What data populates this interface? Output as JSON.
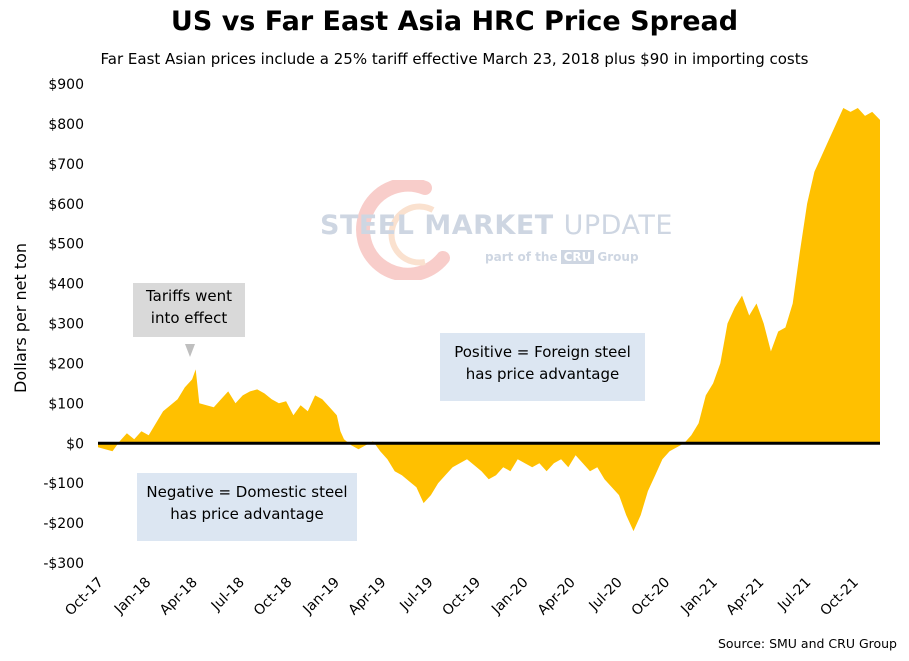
{
  "header": {
    "title": "US vs Far East Asia HRC Price Spread",
    "subtitle": "Far East Asian prices include a 25% tariff effective March 23, 2018 plus $90 in importing costs"
  },
  "footer": {
    "source": "Source: SMU and CRU Group"
  },
  "watermark": {
    "brand_bold": "STEEL",
    "brand_mid": "MARKET",
    "brand_thin": "UPDATE",
    "tagline_pre": "part of the",
    "tagline_logo": "CRU",
    "tagline_post": "Group"
  },
  "annotations": {
    "tariffs_line1": "Tariffs went",
    "tariffs_line2": "into effect",
    "positive_line1": "Positive = Foreign steel",
    "positive_line2": "has price advantage",
    "negative_line1": "Negative = Domestic steel",
    "negative_line2": "has price advantage"
  },
  "colors": {
    "fill": "#ffc000",
    "zero_line": "#000000",
    "annotation_gray": "#d9d9d9",
    "annotation_blue": "#dce6f2"
  },
  "chart_data": {
    "type": "area",
    "title": "US vs Far East Asia HRC Price Spread",
    "subtitle": "Far East Asian prices include a 25% tariff effective March 23, 2018 plus $90 in importing costs",
    "xlabel": "",
    "ylabel": "Dollars per net ton",
    "ylim": [
      -300,
      900
    ],
    "y_ticks": [
      -300,
      -200,
      -100,
      0,
      100,
      200,
      300,
      400,
      500,
      600,
      700,
      800,
      900
    ],
    "y_tick_labels": [
      "-$300",
      "-$200",
      "-$100",
      "$0",
      "$100",
      "$200",
      "$300",
      "$400",
      "$500",
      "$600",
      "$700",
      "$800",
      "$900"
    ],
    "x_range": [
      "2017-10-01",
      "2021-11-22"
    ],
    "x_ticks": [
      "2017-10-01",
      "2018-01-01",
      "2018-04-01",
      "2018-07-01",
      "2018-10-01",
      "2019-01-01",
      "2019-04-01",
      "2019-07-01",
      "2019-10-01",
      "2020-01-01",
      "2020-04-01",
      "2020-07-01",
      "2020-10-01",
      "2021-01-01",
      "2021-04-01",
      "2021-07-01",
      "2021-10-01"
    ],
    "x_tick_labels": [
      "Oct-17",
      "Jan-18",
      "Apr-18",
      "Jul-18",
      "Oct-18",
      "Jan-19",
      "Apr-19",
      "Jul-19",
      "Oct-19",
      "Jan-20",
      "Apr-20",
      "Jul-20",
      "Oct-20",
      "Jan-21",
      "Apr-21",
      "Jul-21",
      "Oct-21"
    ],
    "grid": false,
    "legend": "none",
    "series": [
      {
        "values": [
          [
            "2017-10-01",
            -10
          ],
          [
            "2017-10-15",
            -15
          ],
          [
            "2017-10-29",
            -20
          ],
          [
            "2017-11-12",
            5
          ],
          [
            "2017-11-26",
            25
          ],
          [
            "2017-12-10",
            10
          ],
          [
            "2017-12-24",
            30
          ],
          [
            "2018-01-07",
            20
          ],
          [
            "2018-01-21",
            50
          ],
          [
            "2018-02-04",
            80
          ],
          [
            "2018-02-18",
            95
          ],
          [
            "2018-03-04",
            110
          ],
          [
            "2018-03-18",
            140
          ],
          [
            "2018-04-01",
            160
          ],
          [
            "2018-04-08",
            185
          ],
          [
            "2018-04-15",
            100
          ],
          [
            "2018-04-29",
            95
          ],
          [
            "2018-05-13",
            90
          ],
          [
            "2018-05-27",
            110
          ],
          [
            "2018-06-10",
            130
          ],
          [
            "2018-06-24",
            100
          ],
          [
            "2018-07-08",
            120
          ],
          [
            "2018-07-22",
            130
          ],
          [
            "2018-08-05",
            135
          ],
          [
            "2018-08-19",
            125
          ],
          [
            "2018-09-02",
            110
          ],
          [
            "2018-09-16",
            100
          ],
          [
            "2018-09-30",
            105
          ],
          [
            "2018-10-14",
            70
          ],
          [
            "2018-10-28",
            95
          ],
          [
            "2018-11-11",
            80
          ],
          [
            "2018-11-25",
            120
          ],
          [
            "2018-12-09",
            110
          ],
          [
            "2018-12-23",
            90
          ],
          [
            "2019-01-06",
            70
          ],
          [
            "2019-01-13",
            30
          ],
          [
            "2019-01-20",
            10
          ],
          [
            "2019-02-03",
            -5
          ],
          [
            "2019-02-17",
            -15
          ],
          [
            "2019-03-03",
            -5
          ],
          [
            "2019-03-17",
            5
          ],
          [
            "2019-03-31",
            -20
          ],
          [
            "2019-04-14",
            -40
          ],
          [
            "2019-04-28",
            -70
          ],
          [
            "2019-05-12",
            -80
          ],
          [
            "2019-05-26",
            -95
          ],
          [
            "2019-06-09",
            -110
          ],
          [
            "2019-06-23",
            -150
          ],
          [
            "2019-07-07",
            -130
          ],
          [
            "2019-07-21",
            -100
          ],
          [
            "2019-08-04",
            -80
          ],
          [
            "2019-08-18",
            -60
          ],
          [
            "2019-09-01",
            -50
          ],
          [
            "2019-09-15",
            -40
          ],
          [
            "2019-09-29",
            -55
          ],
          [
            "2019-10-13",
            -70
          ],
          [
            "2019-10-27",
            -90
          ],
          [
            "2019-11-10",
            -80
          ],
          [
            "2019-11-24",
            -60
          ],
          [
            "2019-12-08",
            -70
          ],
          [
            "2019-12-22",
            -40
          ],
          [
            "2020-01-05",
            -50
          ],
          [
            "2020-01-19",
            -60
          ],
          [
            "2020-02-02",
            -50
          ],
          [
            "2020-02-16",
            -70
          ],
          [
            "2020-03-01",
            -50
          ],
          [
            "2020-03-15",
            -40
          ],
          [
            "2020-03-29",
            -60
          ],
          [
            "2020-04-12",
            -30
          ],
          [
            "2020-04-26",
            -50
          ],
          [
            "2020-05-10",
            -70
          ],
          [
            "2020-05-24",
            -60
          ],
          [
            "2020-06-07",
            -90
          ],
          [
            "2020-06-21",
            -110
          ],
          [
            "2020-07-05",
            -130
          ],
          [
            "2020-07-19",
            -180
          ],
          [
            "2020-08-02",
            -220
          ],
          [
            "2020-08-16",
            -180
          ],
          [
            "2020-08-30",
            -120
          ],
          [
            "2020-09-13",
            -80
          ],
          [
            "2020-09-27",
            -40
          ],
          [
            "2020-10-11",
            -20
          ],
          [
            "2020-10-25",
            -10
          ],
          [
            "2020-11-08",
            0
          ],
          [
            "2020-11-22",
            20
          ],
          [
            "2020-12-06",
            50
          ],
          [
            "2020-12-20",
            120
          ],
          [
            "2021-01-03",
            150
          ],
          [
            "2021-01-17",
            200
          ],
          [
            "2021-01-31",
            300
          ],
          [
            "2021-02-14",
            340
          ],
          [
            "2021-02-28",
            370
          ],
          [
            "2021-03-14",
            320
          ],
          [
            "2021-03-28",
            350
          ],
          [
            "2021-04-11",
            300
          ],
          [
            "2021-04-25",
            230
          ],
          [
            "2021-05-09",
            280
          ],
          [
            "2021-05-23",
            290
          ],
          [
            "2021-06-06",
            350
          ],
          [
            "2021-06-20",
            480
          ],
          [
            "2021-07-04",
            600
          ],
          [
            "2021-07-18",
            680
          ],
          [
            "2021-08-01",
            720
          ],
          [
            "2021-08-15",
            760
          ],
          [
            "2021-08-29",
            800
          ],
          [
            "2021-09-12",
            840
          ],
          [
            "2021-09-26",
            830
          ],
          [
            "2021-10-10",
            840
          ],
          [
            "2021-10-24",
            820
          ],
          [
            "2021-11-07",
            830
          ],
          [
            "2021-11-22",
            810
          ]
        ]
      }
    ]
  }
}
